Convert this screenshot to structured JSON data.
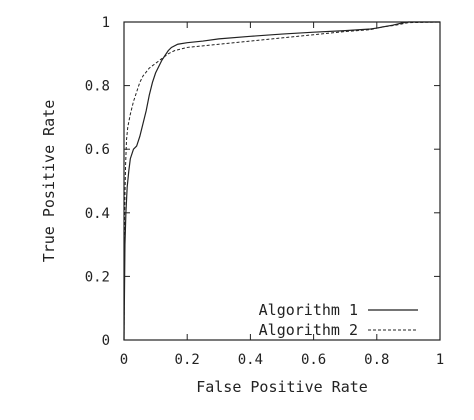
{
  "chart_data": {
    "type": "line",
    "xlabel": "False Positive Rate",
    "ylabel": "True Positive Rate",
    "xlim": [
      0,
      1
    ],
    "ylim": [
      0,
      1
    ],
    "xticks": [
      "0",
      "0.2",
      "0.4",
      "0.6",
      "0.8",
      "1"
    ],
    "yticks": [
      "0",
      "0.2",
      "0.4",
      "0.6",
      "0.8",
      "1"
    ],
    "legend_position": "bottom-right",
    "grid": false,
    "series": [
      {
        "name": "Algorithm 1",
        "style": "solid",
        "color": "#222222",
        "x": [
          0,
          0.003,
          0.006,
          0.01,
          0.015,
          0.02,
          0.03,
          0.04,
          0.05,
          0.06,
          0.07,
          0.08,
          0.09,
          0.1,
          0.11,
          0.12,
          0.13,
          0.14,
          0.15,
          0.17,
          0.2,
          0.25,
          0.3,
          0.4,
          0.5,
          0.6,
          0.7,
          0.78,
          0.8,
          0.85,
          0.88,
          0.9,
          1.0
        ],
        "y": [
          0,
          0.3,
          0.4,
          0.48,
          0.53,
          0.57,
          0.6,
          0.61,
          0.64,
          0.68,
          0.72,
          0.77,
          0.81,
          0.84,
          0.86,
          0.88,
          0.895,
          0.91,
          0.92,
          0.93,
          0.935,
          0.94,
          0.947,
          0.955,
          0.962,
          0.968,
          0.973,
          0.978,
          0.981,
          0.99,
          0.997,
          1.0,
          1.0
        ]
      },
      {
        "name": "Algorithm 2",
        "style": "dashed",
        "color": "#222222",
        "x": [
          0,
          0.002,
          0.005,
          0.008,
          0.012,
          0.02,
          0.03,
          0.04,
          0.05,
          0.06,
          0.08,
          0.1,
          0.12,
          0.14,
          0.16,
          0.2,
          0.25,
          0.3,
          0.4,
          0.5,
          0.6,
          0.7,
          0.78,
          0.82,
          0.86,
          0.9,
          1.0
        ],
        "y": [
          0,
          0.4,
          0.55,
          0.63,
          0.67,
          0.71,
          0.75,
          0.78,
          0.81,
          0.83,
          0.855,
          0.87,
          0.885,
          0.9,
          0.91,
          0.92,
          0.925,
          0.93,
          0.94,
          0.95,
          0.96,
          0.97,
          0.976,
          0.985,
          0.99,
          0.998,
          1.0
        ]
      }
    ]
  }
}
